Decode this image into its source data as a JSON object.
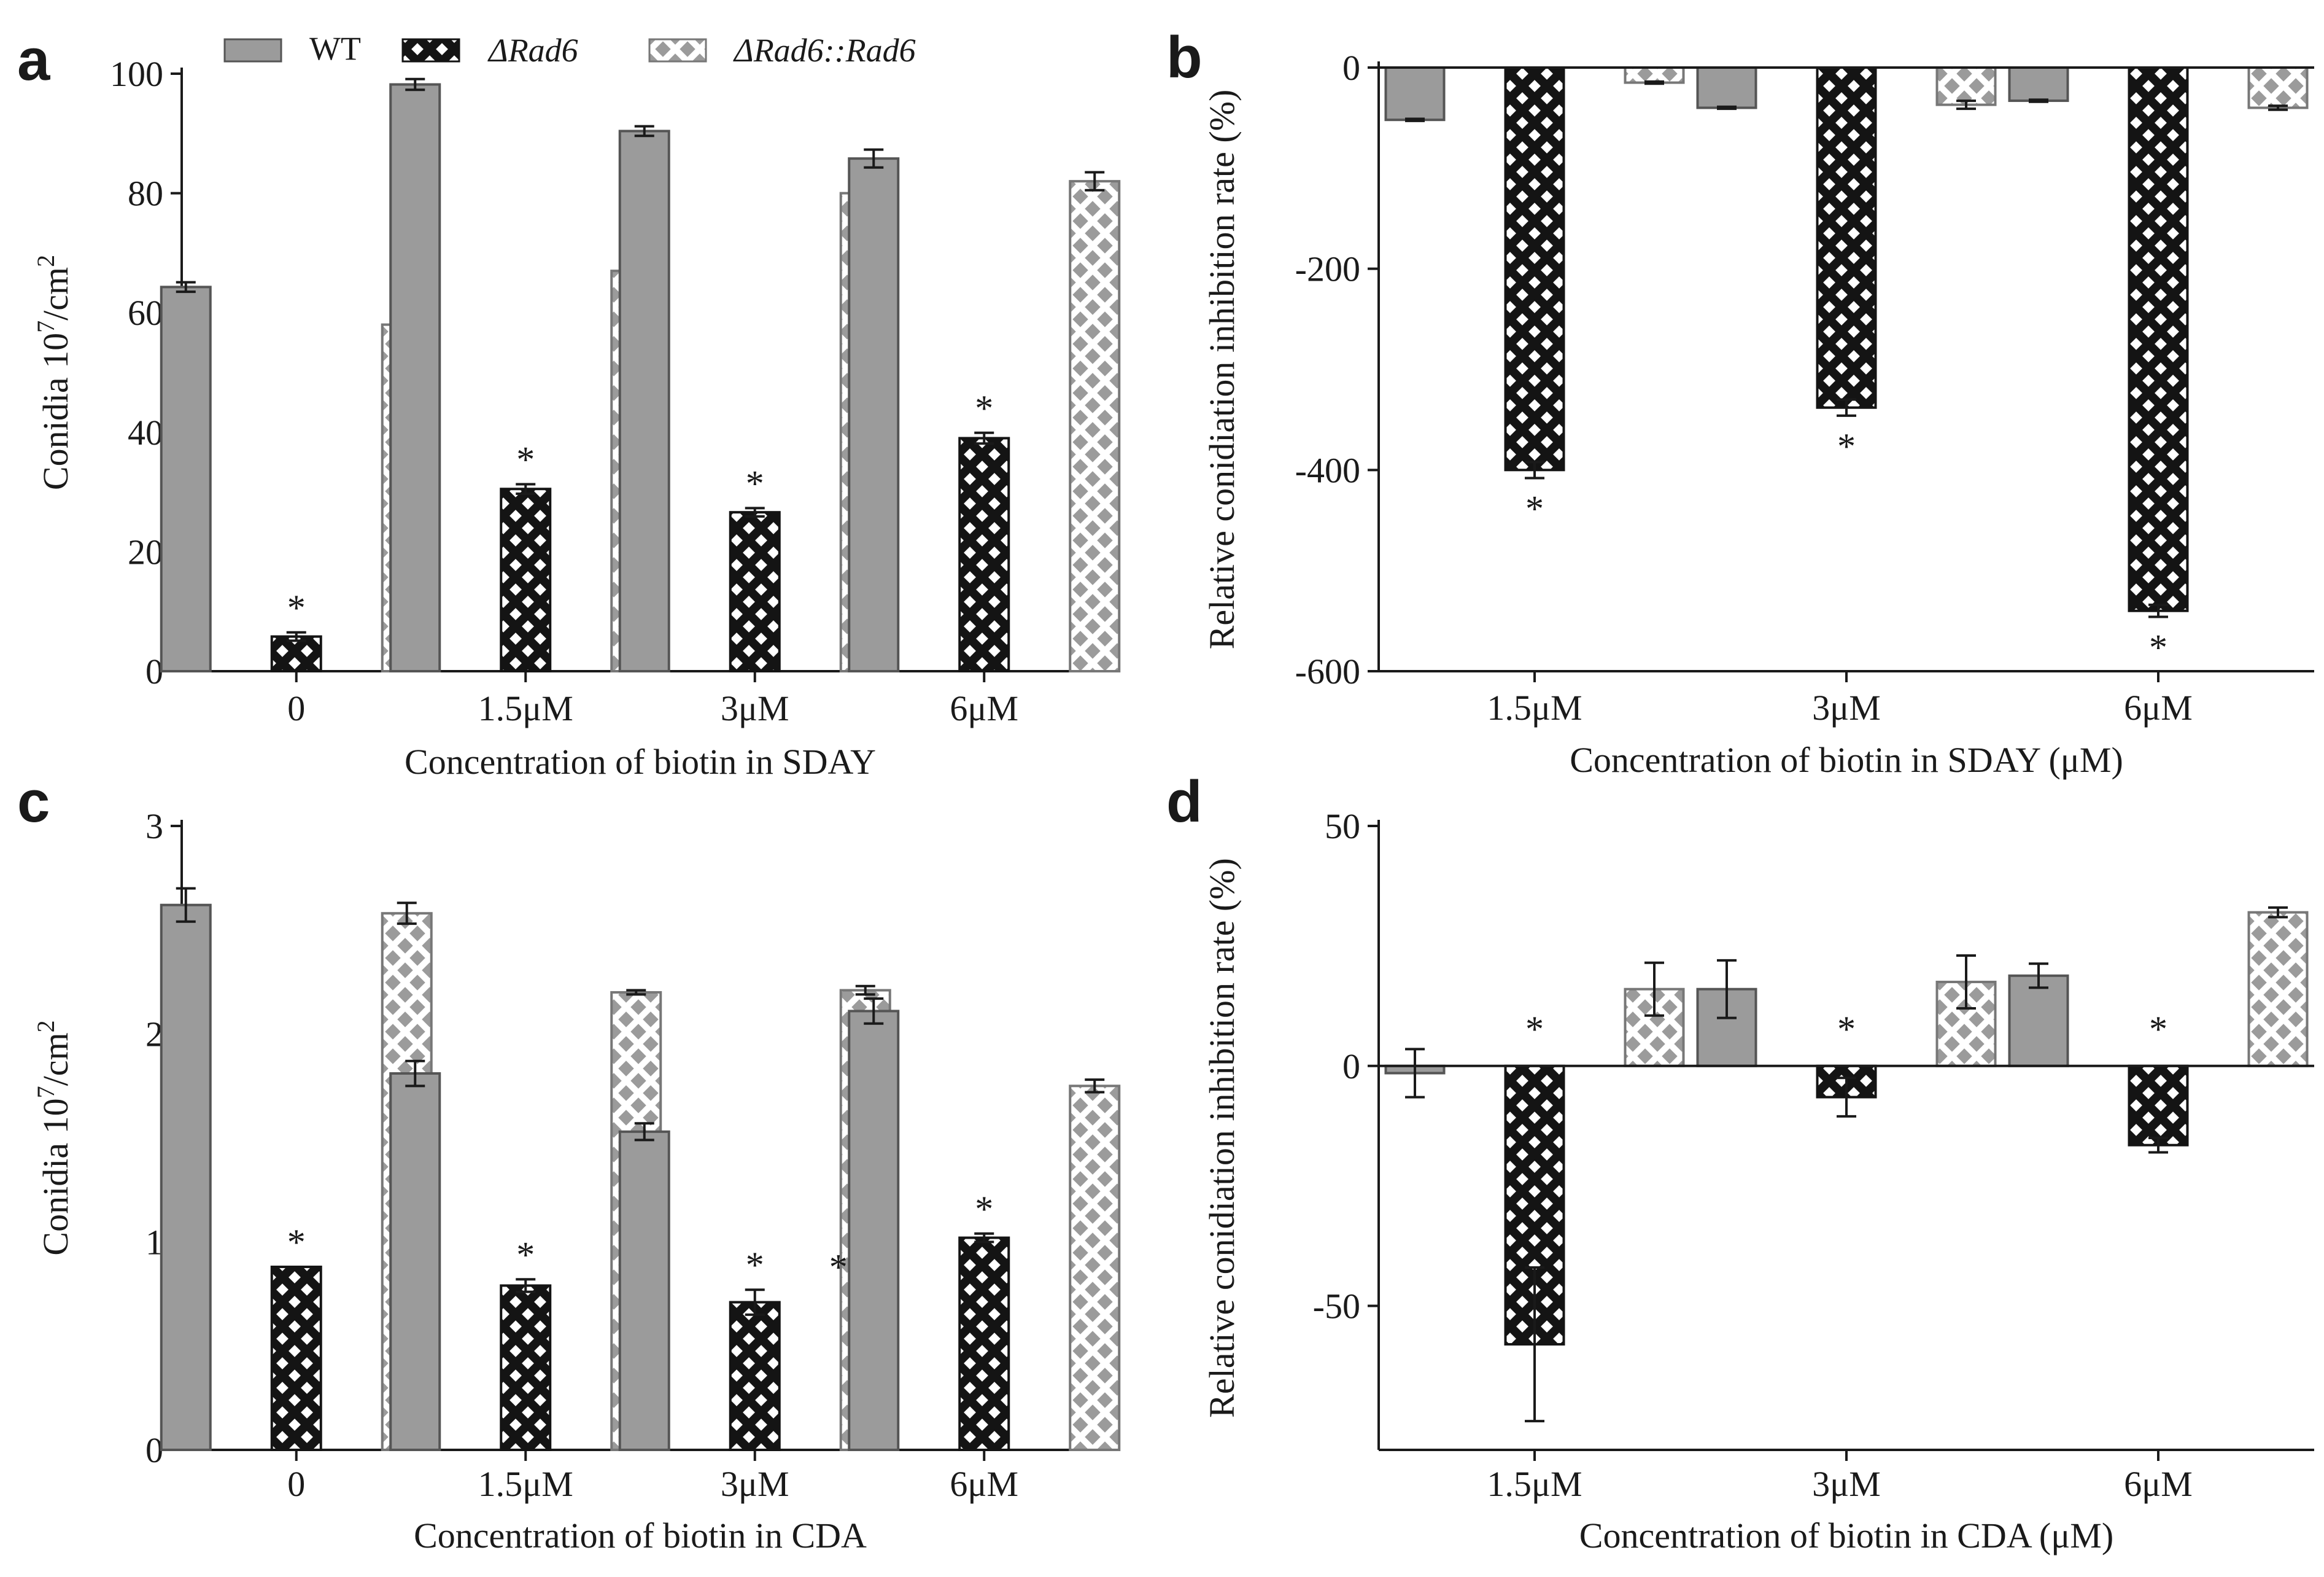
{
  "legend": {
    "wt": "WT",
    "rad6": "ΔRad6",
    "comp": "ΔRad6::Rad6"
  },
  "colors": {
    "wt_fill": "#9b9b9b",
    "axis": "#1a1a1a",
    "rad6_bg": "#141414",
    "rad6_pattern": "#ffffff",
    "comp_bg": "#ffffff",
    "comp_pattern": "#9b9b9b"
  },
  "chart_data": [
    {
      "panel": "a",
      "type": "bar",
      "categories": [
        "0",
        "1.5μM",
        "3μM",
        "6μM"
      ],
      "xlabel": "Concentration of biotin in SDAY",
      "ylabel_base": "Conidia 10",
      "ylabel_sup1": "7",
      "ylabel_mid": "/cm",
      "ylabel_sup2": "2",
      "ylim": [
        0,
        100
      ],
      "yticks": [
        0,
        20,
        40,
        60,
        80,
        100
      ],
      "zero_line": false,
      "series": [
        {
          "name": "WT",
          "values": [
            64.3,
            98.2,
            90.4,
            85.8
          ],
          "errors": [
            0.8,
            0.9,
            0.8,
            1.5
          ],
          "stars": [
            false,
            false,
            false,
            false
          ]
        },
        {
          "name": "ΔRad6",
          "values": [
            5.8,
            30.5,
            26.6,
            39.0
          ],
          "errors": [
            0.7,
            0.8,
            0.7,
            0.9
          ],
          "stars": [
            true,
            true,
            true,
            true
          ]
        },
        {
          "name": "ΔRad6::Rad6",
          "values": [
            58.0,
            67.0,
            80.0,
            82.0
          ],
          "errors": [
            5.0,
            0.8,
            2.2,
            1.5
          ],
          "stars": [
            false,
            false,
            false,
            false
          ]
        }
      ]
    },
    {
      "panel": "b",
      "type": "bar",
      "categories": [
        "1.5μM",
        "3μM",
        "6μM"
      ],
      "xlabel": "Concentration of biotin in SDAY (μM)",
      "ylabel_base": "Relative conidiation inhibition rate (%)",
      "ylim": [
        -600,
        0
      ],
      "yticks": [
        -600,
        -400,
        -200,
        0
      ],
      "zero_line": true,
      "series": [
        {
          "name": "WT",
          "values": [
            -52.0,
            -40.0,
            -33.0
          ],
          "errors": [
            1.0,
            1.0,
            1.0
          ],
          "stars": [
            false,
            false,
            false
          ]
        },
        {
          "name": "ΔRad6",
          "values": [
            -400.0,
            -338.0,
            -540.0
          ],
          "errors": [
            8.0,
            8.0,
            6.0
          ],
          "stars": [
            true,
            true,
            true
          ]
        },
        {
          "name": "ΔRad6::Rad6",
          "values": [
            -15.0,
            -37.0,
            -40.0
          ],
          "errors": [
            1.0,
            4.0,
            2.0
          ],
          "stars": [
            false,
            false,
            false
          ]
        }
      ]
    },
    {
      "panel": "c",
      "type": "bar",
      "categories": [
        "0",
        "1.5μM",
        "3μM",
        "6μM"
      ],
      "xlabel": "Concentration of biotin in CDA",
      "ylabel_base": "Conidia 10",
      "ylabel_sup1": "7",
      "ylabel_mid": "/cm",
      "ylabel_sup2": "2",
      "ylim": [
        0,
        3
      ],
      "yticks": [
        0,
        1,
        2,
        3
      ],
      "zero_line": false,
      "series": [
        {
          "name": "WT",
          "values": [
            2.62,
            1.81,
            1.53,
            2.11
          ],
          "errors": [
            0.08,
            0.06,
            0.04,
            0.06
          ],
          "stars": [
            false,
            false,
            false,
            false
          ]
        },
        {
          "name": "ΔRad6",
          "values": [
            0.88,
            0.79,
            0.71,
            1.02
          ],
          "errors": [
            0.0,
            0.03,
            0.06,
            0.02
          ],
          "stars": [
            true,
            true,
            true,
            true
          ]
        },
        {
          "name": "ΔRad6::Rad6",
          "values": [
            2.58,
            2.2,
            2.21,
            1.75
          ],
          "errors": [
            0.05,
            0.01,
            0.02,
            0.03
          ],
          "stars": [
            false,
            false,
            true,
            false
          ]
        }
      ]
    },
    {
      "panel": "d",
      "type": "bar",
      "categories": [
        "1.5μM",
        "3μM",
        "6μM"
      ],
      "xlabel": "Concentration of biotin in CDA (μM)",
      "ylabel_base": "Relative conidiation inhibition rate (%)",
      "ylim": [
        -80,
        50
      ],
      "yticks": [
        -50,
        0,
        50
      ],
      "zero_line": true,
      "series": [
        {
          "name": "WT",
          "values": [
            -1.5,
            16.0,
            18.8
          ],
          "errors": [
            5.0,
            6.0,
            2.5
          ],
          "stars": [
            false,
            false,
            false
          ]
        },
        {
          "name": "ΔRad6",
          "values": [
            -58.0,
            -6.5,
            -16.5
          ],
          "errors": [
            16.0,
            4.0,
            1.5
          ],
          "stars": [
            true,
            true,
            true
          ]
        },
        {
          "name": "ΔRad6::Rad6",
          "values": [
            16.0,
            17.5,
            32.0
          ],
          "errors": [
            5.5,
            5.5,
            1.0
          ],
          "stars": [
            false,
            false,
            false
          ]
        }
      ]
    }
  ],
  "star_symbol": "*"
}
